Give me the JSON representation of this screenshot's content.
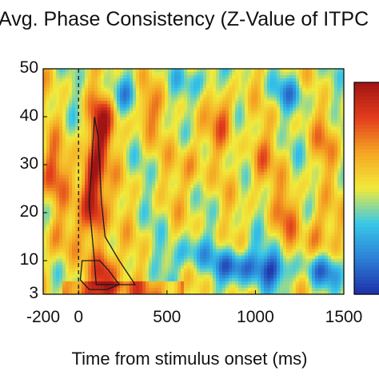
{
  "chart_data": {
    "type": "heatmap",
    "title": "Avg. Phase Consistency (Z-Value of ITPC",
    "xlabel": "Time from stimulus onset (ms)",
    "ylabel": "",
    "x_ticks": [
      "-200",
      "0",
      "500",
      "1000",
      "1500"
    ],
    "y_ticks": [
      "3",
      "10",
      "20",
      "30",
      "40",
      "50"
    ],
    "xlim": [
      -200,
      1500
    ],
    "ylim": [
      3,
      50
    ],
    "x_tick_values": [
      -200,
      0,
      500,
      1000,
      1500
    ],
    "y_tick_values": [
      3,
      10,
      20,
      30,
      40,
      50
    ],
    "stimulus_onset_line_x": 0,
    "colormap": [
      "#1f2fa8",
      "#2c7fd6",
      "#38c8e8",
      "#f2ea3a",
      "#f5a623",
      "#e23c1c",
      "#a11414"
    ],
    "significance_contours": [
      [
        [
          90,
          40
        ],
        [
          110,
          36
        ],
        [
          120,
          30
        ],
        [
          130,
          22
        ],
        [
          150,
          15
        ],
        [
          230,
          10
        ],
        [
          320,
          5
        ],
        [
          100,
          5
        ],
        [
          85,
          12
        ],
        [
          60,
          22
        ],
        [
          75,
          30
        ]
      ],
      [
        [
          20,
          10
        ],
        [
          120,
          10
        ],
        [
          170,
          8
        ],
        [
          230,
          5
        ],
        [
          160,
          4
        ],
        [
          60,
          4
        ],
        [
          10,
          6
        ]
      ]
    ],
    "hotspots": [
      {
        "t": 80,
        "f": 28,
        "level": 0.95
      },
      {
        "t": 120,
        "f": 38,
        "level": 0.95
      },
      {
        "t": 90,
        "f": 20,
        "level": 0.9
      },
      {
        "t": 150,
        "f": 7,
        "level": 0.95
      },
      {
        "t": -150,
        "f": 28,
        "level": 0.8
      },
      {
        "t": -120,
        "f": 15,
        "level": 0.7
      },
      {
        "t": 380,
        "f": 42,
        "level": 0.75
      },
      {
        "t": 640,
        "f": 30,
        "level": 0.7
      },
      {
        "t": 820,
        "f": 40,
        "level": 0.75
      },
      {
        "t": 1020,
        "f": 30,
        "level": 0.7
      },
      {
        "t": 1180,
        "f": 20,
        "level": 0.7
      },
      {
        "t": 1350,
        "f": 15,
        "level": 0.75
      },
      {
        "t": 1400,
        "f": 35,
        "level": 0.65
      }
    ],
    "coldspots": [
      {
        "t": 900,
        "f": 9,
        "level": 0.1
      },
      {
        "t": 1100,
        "f": 8,
        "level": 0.15
      },
      {
        "t": 620,
        "f": 11,
        "level": 0.25
      },
      {
        "t": 1400,
        "f": 8,
        "level": 0.2
      },
      {
        "t": 300,
        "f": 45,
        "level": 0.3
      },
      {
        "t": 1200,
        "f": 45,
        "level": 0.3
      },
      {
        "t": 700,
        "f": 48,
        "level": 0.3
      }
    ]
  }
}
